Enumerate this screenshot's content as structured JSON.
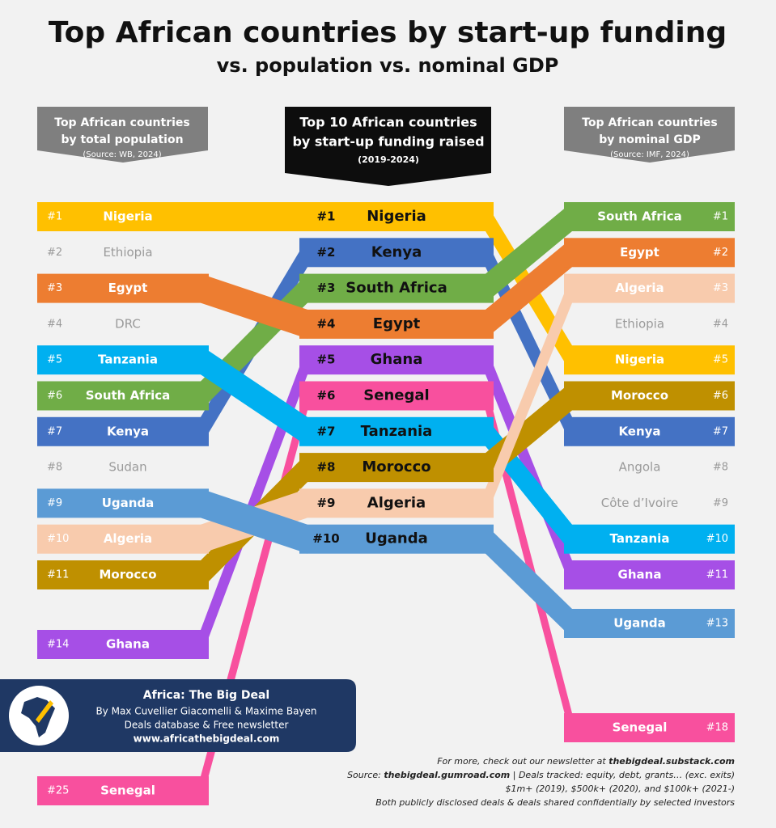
{
  "title": "Top African countries by start-up funding",
  "subtitle": "vs. population vs. nominal GDP",
  "headers": {
    "left": {
      "line1": "Top African countries",
      "line2": "by total population",
      "source": "(Source: WB, 2024)"
    },
    "center": {
      "line1": "Top 10 African countries",
      "line2": "by start-up funding raised",
      "source": "(2019-2024)"
    },
    "right": {
      "line1": "Top African countries",
      "line2": "by nominal GDP",
      "source": "(Source: IMF, 2024)"
    }
  },
  "colors": {
    "Nigeria": "#ffc000",
    "Kenya": "#4472c4",
    "South Africa": "#70ad47",
    "Egypt": "#ed7d31",
    "Ghana": "#a64fe6",
    "Senegal": "#f8509e",
    "Tanzania": "#00b0f0",
    "Morocco": "#bf9000",
    "Algeria": "#f8cbad",
    "Uganda": "#5b9bd5"
  },
  "left": [
    {
      "rank": "#1",
      "name": "Nigeria"
    },
    {
      "rank": "#2",
      "name": "Ethiopia"
    },
    {
      "rank": "#3",
      "name": "Egypt"
    },
    {
      "rank": "#4",
      "name": "DRC"
    },
    {
      "rank": "#5",
      "name": "Tanzania"
    },
    {
      "rank": "#6",
      "name": "South Africa"
    },
    {
      "rank": "#7",
      "name": "Kenya"
    },
    {
      "rank": "#8",
      "name": "Sudan"
    },
    {
      "rank": "#9",
      "name": "Uganda"
    },
    {
      "rank": "#10",
      "name": "Algeria"
    },
    {
      "rank": "#11",
      "name": "Morocco"
    },
    {
      "rank": "#14",
      "name": "Ghana"
    },
    {
      "rank": "#25",
      "name": "Senegal"
    }
  ],
  "center": [
    {
      "rank": "#1",
      "name": "Nigeria"
    },
    {
      "rank": "#2",
      "name": "Kenya"
    },
    {
      "rank": "#3",
      "name": "South Africa"
    },
    {
      "rank": "#4",
      "name": "Egypt"
    },
    {
      "rank": "#5",
      "name": "Ghana"
    },
    {
      "rank": "#6",
      "name": "Senegal"
    },
    {
      "rank": "#7",
      "name": "Tanzania"
    },
    {
      "rank": "#8",
      "name": "Morocco"
    },
    {
      "rank": "#9",
      "name": "Algeria"
    },
    {
      "rank": "#10",
      "name": "Uganda"
    }
  ],
  "right": [
    {
      "rank": "#1",
      "name": "South Africa"
    },
    {
      "rank": "#2",
      "name": "Egypt"
    },
    {
      "rank": "#3",
      "name": "Algeria"
    },
    {
      "rank": "#4",
      "name": "Ethiopia"
    },
    {
      "rank": "#5",
      "name": "Nigeria"
    },
    {
      "rank": "#6",
      "name": "Morocco"
    },
    {
      "rank": "#7",
      "name": "Kenya"
    },
    {
      "rank": "#8",
      "name": "Angola"
    },
    {
      "rank": "#9",
      "name": "Côte d’Ivoire"
    },
    {
      "rank": "#10",
      "name": "Tanzania"
    },
    {
      "rank": "#11",
      "name": "Ghana"
    },
    {
      "rank": "#13",
      "name": "Uganda"
    },
    {
      "rank": "#18",
      "name": "Senegal"
    }
  ],
  "branding": {
    "name": "Africa: The Big Deal",
    "authors": "By Max Cuvellier Giacomelli & Maxime Bayen",
    "tagline": "Deals database & Free newsletter",
    "url": "www.africathebigdeal.com"
  },
  "footer": [
    [
      {
        "text": "For more, check out our newsletter at "
      },
      {
        "text": "thebigdeal.substack.com",
        "bold": true
      }
    ],
    [
      {
        "text": "Source: "
      },
      {
        "text": "thebigdeal.gumroad.com",
        "bold": true
      },
      {
        "text": " | Deals tracked: equity, debt, grants… (exc. exits)"
      }
    ],
    [
      {
        "text": "$1m+ (2019), $500k+ (2020), and $100k+ (2021-)"
      }
    ],
    [
      {
        "text": "Both publicly disclosed deals & deals shared confidentially by selected investors"
      }
    ]
  ]
}
